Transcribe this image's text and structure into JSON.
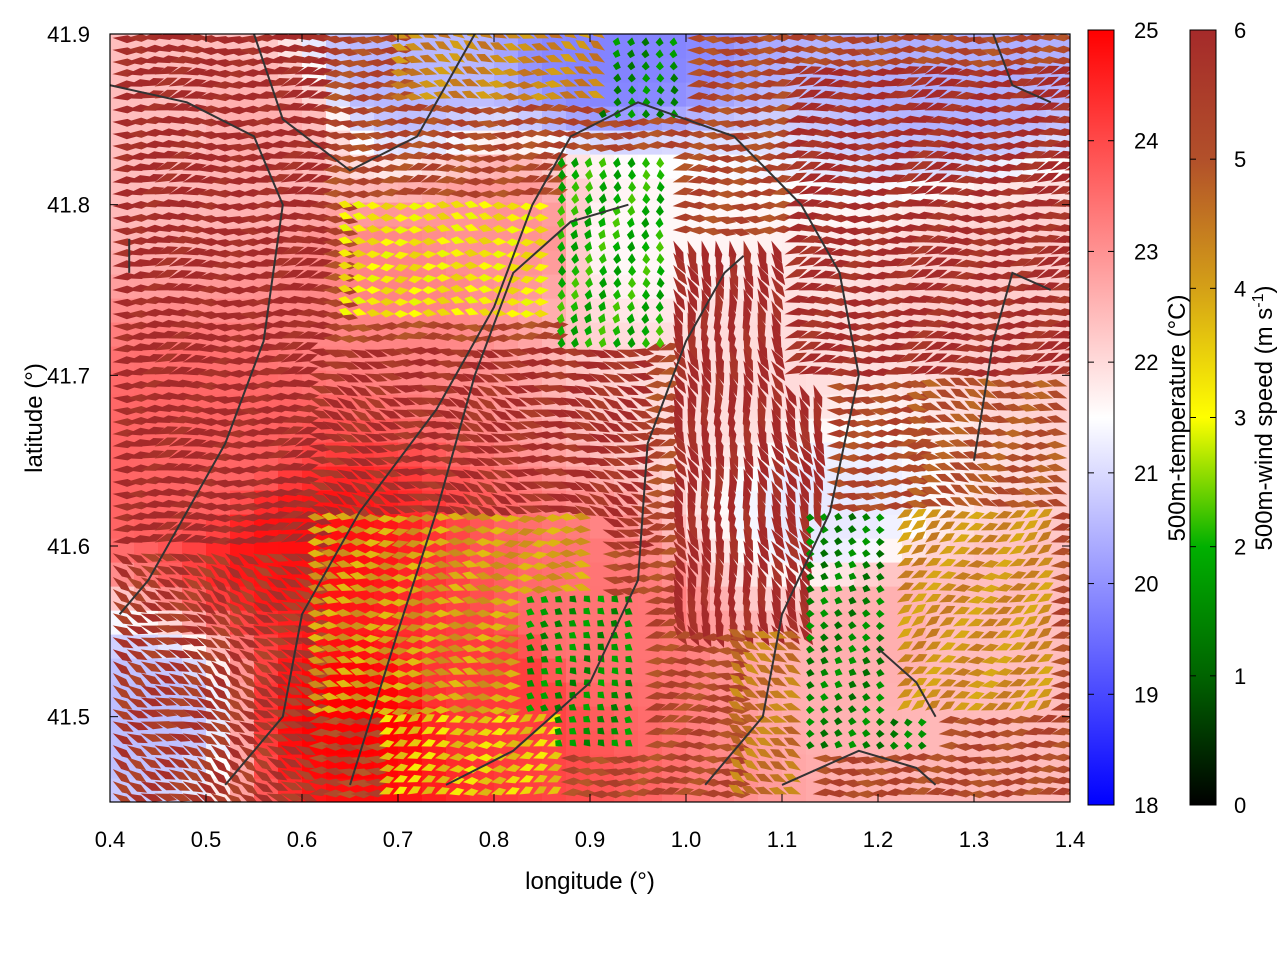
{
  "chart_data": {
    "type": "heatmap",
    "title": "",
    "xlabel": "longitude (°)",
    "ylabel": "latitude (°)",
    "xlim": [
      0.4,
      1.4
    ],
    "ylim": [
      41.45,
      41.9
    ],
    "x_ticks": [
      "0.4",
      "0.5",
      "0.6",
      "0.7",
      "0.8",
      "0.9",
      "1.0",
      "1.1",
      "1.2",
      "1.3",
      "1.4"
    ],
    "y_ticks": [
      "41.5",
      "41.6",
      "41.7",
      "41.8",
      "41.9"
    ],
    "grid": false,
    "temperature_colorbar": {
      "label": "500m-temperature (°C)",
      "range": [
        18,
        25
      ],
      "ticks": [
        "18",
        "19",
        "20",
        "21",
        "22",
        "23",
        "24",
        "25"
      ],
      "colors": [
        "#0000ff",
        "#ffffff",
        "#ff0000"
      ]
    },
    "wind_colorbar": {
      "label_main": "500m-wind speed (m s",
      "label_sup": "-1",
      "label_end": ")",
      "range": [
        0,
        6
      ],
      "ticks": [
        "0",
        "1",
        "2",
        "3",
        "4",
        "5",
        "6"
      ],
      "colors": [
        "#000000",
        "#006400",
        "#00b000",
        "#ffff00",
        "#d4a017",
        "#b2502a",
        "#a52a2a"
      ]
    },
    "temperature_field": [
      {
        "lon": 0.45,
        "lat": 41.85,
        "t": 22.4
      },
      {
        "lon": 0.55,
        "lat": 41.85,
        "t": 22.6
      },
      {
        "lon": 0.7,
        "lat": 41.88,
        "t": 20.5
      },
      {
        "lon": 0.92,
        "lat": 41.89,
        "t": 19.8
      },
      {
        "lon": 1.28,
        "lat": 41.89,
        "t": 20.4
      },
      {
        "lon": 0.82,
        "lat": 41.78,
        "t": 23.0
      },
      {
        "lon": 0.95,
        "lat": 41.78,
        "t": 21.6
      },
      {
        "lon": 0.7,
        "lat": 41.75,
        "t": 23.2
      },
      {
        "lon": 0.6,
        "lat": 41.6,
        "t": 24.8
      },
      {
        "lon": 0.65,
        "lat": 41.5,
        "t": 25.0
      },
      {
        "lon": 0.8,
        "lat": 41.52,
        "t": 24.2
      },
      {
        "lon": 0.9,
        "lat": 41.55,
        "t": 23.4
      },
      {
        "lon": 1.15,
        "lat": 41.62,
        "t": 21.2
      },
      {
        "lon": 1.2,
        "lat": 41.55,
        "t": 22.6
      },
      {
        "lon": 1.35,
        "lat": 41.75,
        "t": 22.2
      },
      {
        "lon": 0.43,
        "lat": 41.5,
        "t": 20.6
      },
      {
        "lon": 0.5,
        "lat": 41.65,
        "t": 23.6
      },
      {
        "lon": 1.05,
        "lat": 41.7,
        "t": 22.0
      },
      {
        "lon": 1.3,
        "lat": 41.55,
        "t": 22.4
      }
    ],
    "wind_regions": [
      {
        "lon": [
          0.4,
          0.62
        ],
        "lat": [
          41.6,
          41.9
        ],
        "speed": 6,
        "dir": 0.1
      },
      {
        "lon": [
          0.6,
          0.95
        ],
        "lat": [
          41.6,
          41.72
        ],
        "speed": 5.8,
        "dir": -0.3
      },
      {
        "lon": [
          0.98,
          1.14
        ],
        "lat": [
          41.55,
          41.78
        ],
        "speed": 6,
        "dir": -1.2
      },
      {
        "lon": [
          1.1,
          1.4
        ],
        "lat": [
          41.7,
          41.88
        ],
        "speed": 5.9,
        "dir": 0.15
      },
      {
        "lon": [
          0.65,
          0.9
        ],
        "lat": [
          41.73,
          41.8
        ],
        "speed": 3.2,
        "dir": 3.1
      },
      {
        "lon": [
          0.86,
          0.98
        ],
        "lat": [
          41.72,
          41.83
        ],
        "speed": 2.0,
        "dir": -1.7
      },
      {
        "lon": [
          0.9,
          1.0
        ],
        "lat": [
          41.85,
          41.9
        ],
        "speed": 1.5,
        "dir": -1.7
      },
      {
        "lon": [
          0.7,
          0.92
        ],
        "lat": [
          41.86,
          41.9
        ],
        "speed": 4.3,
        "dir": 2.8
      },
      {
        "lon": [
          0.62,
          0.9
        ],
        "lat": [
          41.5,
          41.62
        ],
        "speed": 4.0,
        "dir": 3.1
      },
      {
        "lon": [
          0.84,
          0.95
        ],
        "lat": [
          41.48,
          41.57
        ],
        "speed": 1.6,
        "dir": 2.5
      },
      {
        "lon": [
          1.12,
          1.25
        ],
        "lat": [
          41.48,
          41.62
        ],
        "speed": 1.4,
        "dir": 3.0
      },
      {
        "lon": [
          1.22,
          1.38
        ],
        "lat": [
          41.5,
          41.62
        ],
        "speed": 4.2,
        "dir": 0.4
      },
      {
        "lon": [
          0.4,
          0.6
        ],
        "lat": [
          41.45,
          41.6
        ],
        "speed": 5.6,
        "dir": -0.5
      },
      {
        "lon": [
          0.68,
          0.86
        ],
        "lat": [
          41.45,
          41.5
        ],
        "speed": 3.5,
        "dir": 0.3
      },
      {
        "lon": [
          1.25,
          1.4
        ],
        "lat": [
          41.62,
          41.7
        ],
        "speed": 5.0,
        "dir": 2.9
      },
      {
        "lon": [
          1.06,
          1.12
        ],
        "lat": [
          41.45,
          41.55
        ],
        "speed": 4.5,
        "dir": 2.6
      }
    ],
    "contours": [
      [
        [
          0.55,
          41.9
        ],
        [
          0.58,
          41.85
        ],
        [
          0.65,
          41.82
        ],
        [
          0.72,
          41.84
        ],
        [
          0.76,
          41.88
        ],
        [
          0.78,
          41.9
        ]
      ],
      [
        [
          0.4,
          41.87
        ],
        [
          0.48,
          41.86
        ],
        [
          0.55,
          41.84
        ],
        [
          0.58,
          41.8
        ],
        [
          0.56,
          41.72
        ],
        [
          0.52,
          41.66
        ],
        [
          0.48,
          41.62
        ],
        [
          0.44,
          41.58
        ],
        [
          0.41,
          41.56
        ]
      ],
      [
        [
          0.42,
          41.78
        ],
        [
          0.42,
          41.76
        ]
      ],
      [
        [
          0.52,
          41.46
        ],
        [
          0.58,
          41.5
        ],
        [
          0.6,
          41.56
        ],
        [
          0.66,
          41.62
        ],
        [
          0.74,
          41.68
        ],
        [
          0.8,
          41.74
        ],
        [
          0.84,
          41.8
        ],
        [
          0.88,
          41.84
        ],
        [
          0.95,
          41.86
        ],
        [
          1.05,
          41.84
        ],
        [
          1.12,
          41.8
        ],
        [
          1.16,
          41.76
        ],
        [
          1.18,
          41.7
        ],
        [
          1.15,
          41.62
        ],
        [
          1.1,
          41.56
        ],
        [
          1.08,
          41.5
        ],
        [
          1.02,
          41.46
        ]
      ],
      [
        [
          0.65,
          41.46
        ],
        [
          0.7,
          41.55
        ],
        [
          0.74,
          41.62
        ],
        [
          0.78,
          41.7
        ],
        [
          0.82,
          41.76
        ],
        [
          0.88,
          41.79
        ],
        [
          0.94,
          41.8
        ]
      ],
      [
        [
          0.75,
          41.46
        ],
        [
          0.82,
          41.48
        ],
        [
          0.9,
          41.52
        ],
        [
          0.95,
          41.58
        ],
        [
          0.96,
          41.66
        ],
        [
          1.0,
          41.72
        ],
        [
          1.04,
          41.76
        ],
        [
          1.06,
          41.77
        ]
      ],
      [
        [
          1.1,
          41.46
        ],
        [
          1.18,
          41.48
        ],
        [
          1.24,
          41.47
        ],
        [
          1.26,
          41.46
        ]
      ],
      [
        [
          1.26,
          41.5
        ],
        [
          1.24,
          41.52
        ],
        [
          1.2,
          41.54
        ]
      ],
      [
        [
          1.32,
          41.9
        ],
        [
          1.34,
          41.87
        ],
        [
          1.38,
          41.86
        ]
      ],
      [
        [
          1.3,
          41.65
        ],
        [
          1.32,
          41.72
        ],
        [
          1.34,
          41.76
        ],
        [
          1.38,
          41.75
        ]
      ]
    ]
  }
}
